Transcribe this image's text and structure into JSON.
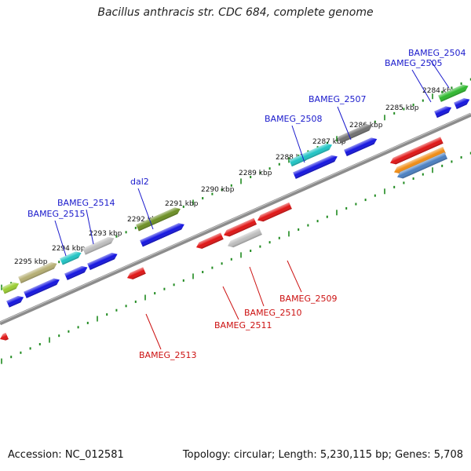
{
  "title": "Bacillus anthracis str. CDC 684, complete genome",
  "footer": {
    "accession": "Accession: NC_012581",
    "topology": "Topology: circular; Length: 5,230,115 bp; Genes: 5,708"
  },
  "colors": {
    "forward_label": "#1a1acc",
    "reverse_label": "#cc1111",
    "tick": "#1f8a1f",
    "backbone": "#8c8c8c"
  },
  "scale_labels": [
    "2295 kbp",
    "2294 kbp",
    "2293 kbp",
    "2292 kbp",
    "2291 kbp",
    "2290 kbp",
    "2289 kbp",
    "2288 kbp",
    "2287 kbp",
    "2286 kbp",
    "2285 kbp",
    "2284 kbp"
  ],
  "forward_genes": [
    "BAMEG_2504",
    "BAMEG_2505",
    "BAMEG_2507",
    "BAMEG_2508",
    "dal2",
    "BAMEG_2514",
    "BAMEG_2515"
  ],
  "reverse_genes": [
    "BAMEG_2509",
    "BAMEG_2510",
    "BAMEG_2511",
    "BAMEG_2513"
  ]
}
